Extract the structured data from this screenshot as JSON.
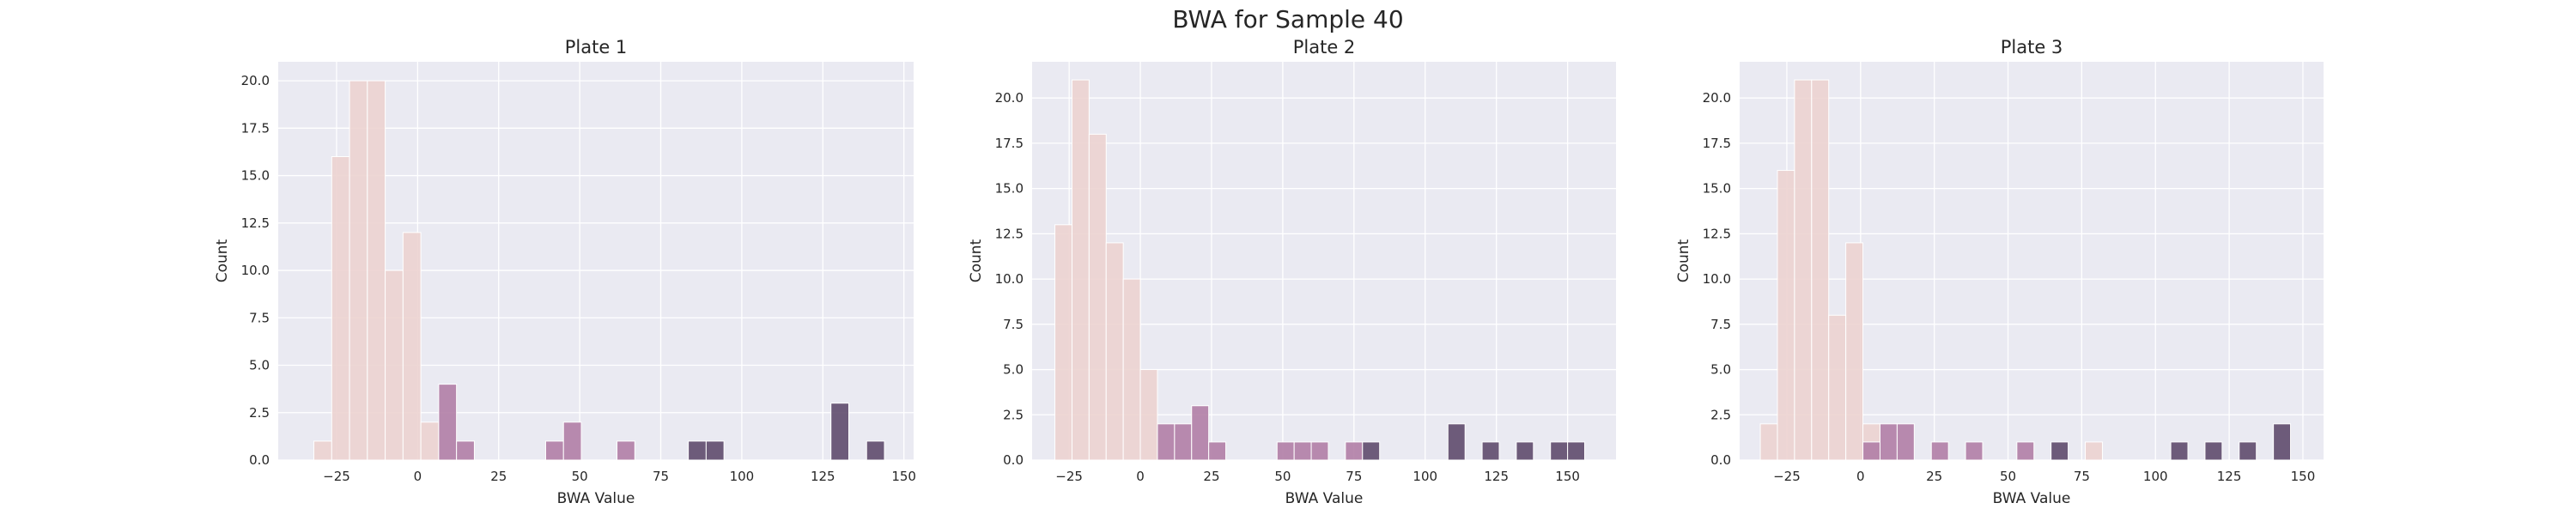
{
  "suptitle": "BWA for Sample 40",
  "colors": {
    "panel_bg": "#eaeaf2",
    "grid": "#ffffff",
    "hue_levels": [
      "#ecd3d0",
      "#b17ea6",
      "#5f4b6d"
    ]
  },
  "chart_data": [
    {
      "type": "bar",
      "title": "Plate 1",
      "xlabel": "BWA Value",
      "ylabel": "Count",
      "xlim": [
        -43,
        153
      ],
      "ylim": [
        0,
        21
      ],
      "grid": true,
      "xticks": [
        -25,
        0,
        25,
        50,
        75,
        100,
        125,
        150
      ],
      "xtick_labels": [
        "−25",
        "0",
        "25",
        "50",
        "75",
        "100",
        "125",
        "150"
      ],
      "yticks": [
        0,
        2.5,
        5,
        7.5,
        10,
        12.5,
        15,
        17.5,
        20
      ],
      "ytick_labels": [
        "0.0",
        "2.5",
        "5.0",
        "7.5",
        "10.0",
        "12.5",
        "15.0",
        "17.5",
        "20.0"
      ],
      "bin_width": 5.5,
      "bars": [
        {
          "x": -32.0,
          "count": 1,
          "hue": 0
        },
        {
          "x": -26.5,
          "count": 16,
          "hue": 0
        },
        {
          "x": -21.0,
          "count": 20,
          "hue": 0
        },
        {
          "x": -15.5,
          "count": 20,
          "hue": 0
        },
        {
          "x": -10.0,
          "count": 10,
          "hue": 0
        },
        {
          "x": -4.5,
          "count": 12,
          "hue": 0
        },
        {
          "x": 1.0,
          "count": 2,
          "hue": 0
        },
        {
          "x": 6.5,
          "count": 4,
          "hue": 1
        },
        {
          "x": 12.0,
          "count": 1,
          "hue": 1
        },
        {
          "x": 39.5,
          "count": 1,
          "hue": 1
        },
        {
          "x": 45.0,
          "count": 2,
          "hue": 1
        },
        {
          "x": 61.5,
          "count": 1,
          "hue": 1
        },
        {
          "x": 83.5,
          "count": 1,
          "hue": 2
        },
        {
          "x": 89.0,
          "count": 1,
          "hue": 2
        },
        {
          "x": 127.5,
          "count": 3,
          "hue": 2
        },
        {
          "x": 138.5,
          "count": 1,
          "hue": 2
        }
      ]
    },
    {
      "type": "bar",
      "title": "Plate 2",
      "xlabel": "BWA Value",
      "ylabel": "Count",
      "xlim": [
        -38,
        167
      ],
      "ylim": [
        0,
        22
      ],
      "grid": true,
      "xticks": [
        -25,
        0,
        25,
        50,
        75,
        100,
        125,
        150
      ],
      "xtick_labels": [
        "−25",
        "0",
        "25",
        "50",
        "75",
        "100",
        "125",
        "150"
      ],
      "yticks": [
        0,
        2.5,
        5,
        7.5,
        10,
        12.5,
        15,
        17.5,
        20
      ],
      "ytick_labels": [
        "0.0",
        "2.5",
        "5.0",
        "7.5",
        "10.0",
        "12.5",
        "15.0",
        "17.5",
        "20.0"
      ],
      "bin_width": 6.0,
      "bars": [
        {
          "x": -30.0,
          "count": 13,
          "hue": 0
        },
        {
          "x": -24.0,
          "count": 21,
          "hue": 0
        },
        {
          "x": -18.0,
          "count": 18,
          "hue": 0
        },
        {
          "x": -12.0,
          "count": 12,
          "hue": 0
        },
        {
          "x": -6.0,
          "count": 10,
          "hue": 0
        },
        {
          "x": 0.0,
          "count": 5,
          "hue": 0
        },
        {
          "x": 6.0,
          "count": 2,
          "hue": 1
        },
        {
          "x": 12.0,
          "count": 2,
          "hue": 1
        },
        {
          "x": 18.0,
          "count": 3,
          "hue": 1
        },
        {
          "x": 24.0,
          "count": 1,
          "hue": 1
        },
        {
          "x": 48.0,
          "count": 1,
          "hue": 1
        },
        {
          "x": 54.0,
          "count": 1,
          "hue": 1
        },
        {
          "x": 60.0,
          "count": 1,
          "hue": 1
        },
        {
          "x": 72.0,
          "count": 1,
          "hue": 1
        },
        {
          "x": 78.0,
          "count": 1,
          "hue": 2
        },
        {
          "x": 108.0,
          "count": 2,
          "hue": 2
        },
        {
          "x": 120.0,
          "count": 1,
          "hue": 2
        },
        {
          "x": 132.0,
          "count": 1,
          "hue": 2
        },
        {
          "x": 144.0,
          "count": 1,
          "hue": 2
        },
        {
          "x": 150.0,
          "count": 1,
          "hue": 2
        }
      ]
    },
    {
      "type": "bar",
      "title": "Plate 3",
      "xlabel": "BWA Value",
      "ylabel": "Count",
      "xlim": [
        -41,
        157
      ],
      "ylim": [
        0,
        22
      ],
      "grid": true,
      "xticks": [
        -25,
        0,
        25,
        50,
        75,
        100,
        125,
        150
      ],
      "xtick_labels": [
        "−25",
        "0",
        "25",
        "50",
        "75",
        "100",
        "125",
        "150"
      ],
      "yticks": [
        0,
        2.5,
        5,
        7.5,
        10,
        12.5,
        15,
        17.5,
        20
      ],
      "ytick_labels": [
        "0.0",
        "2.5",
        "5.0",
        "7.5",
        "10.0",
        "12.5",
        "15.0",
        "17.5",
        "20.0"
      ],
      "bin_width": 5.8,
      "bars": [
        {
          "x": -34.0,
          "count": 2,
          "hue": 0
        },
        {
          "x": -28.2,
          "count": 16,
          "hue": 0
        },
        {
          "x": -22.4,
          "count": 21,
          "hue": 0
        },
        {
          "x": -16.6,
          "count": 21,
          "hue": 0
        },
        {
          "x": -10.8,
          "count": 8,
          "hue": 0
        },
        {
          "x": -5.0,
          "count": 12,
          "hue": 0
        },
        {
          "x": 0.8,
          "count": 2,
          "hue": 0
        },
        {
          "x": 0.8,
          "count": 1,
          "hue": 1
        },
        {
          "x": 6.6,
          "count": 2,
          "hue": 1
        },
        {
          "x": 12.4,
          "count": 2,
          "hue": 1
        },
        {
          "x": 24.0,
          "count": 1,
          "hue": 1
        },
        {
          "x": 35.6,
          "count": 1,
          "hue": 1
        },
        {
          "x": 53.0,
          "count": 1,
          "hue": 1
        },
        {
          "x": 64.6,
          "count": 1,
          "hue": 2
        },
        {
          "x": 76.2,
          "count": 1,
          "hue": 0
        },
        {
          "x": 105.2,
          "count": 1,
          "hue": 2
        },
        {
          "x": 116.8,
          "count": 1,
          "hue": 2
        },
        {
          "x": 128.4,
          "count": 1,
          "hue": 2
        },
        {
          "x": 140.0,
          "count": 2,
          "hue": 2
        }
      ]
    }
  ]
}
